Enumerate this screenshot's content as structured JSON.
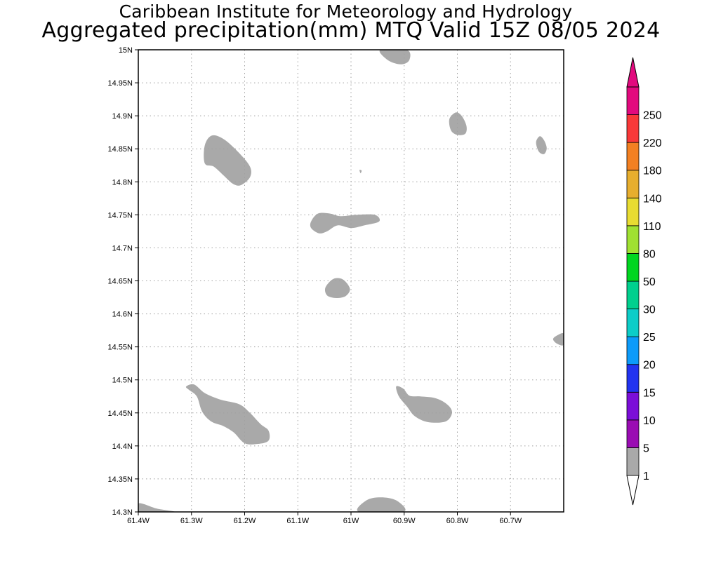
{
  "header": {
    "line1": "Caribbean Institute for Meteorology and Hydrology",
    "line2": "Aggregated precipitation(mm) MTQ Valid 15Z 08/05 2024"
  },
  "map": {
    "lon_range": [
      -61.4,
      -60.6
    ],
    "lat_range": [
      14.3,
      15.0
    ],
    "lon_ticks": [
      {
        "v": -61.4,
        "label": "61.4W"
      },
      {
        "v": -61.3,
        "label": "61.3W"
      },
      {
        "v": -61.2,
        "label": "61.2W"
      },
      {
        "v": -61.1,
        "label": "61.1W"
      },
      {
        "v": -61.0,
        "label": "61W"
      },
      {
        "v": -60.9,
        "label": "60.9W"
      },
      {
        "v": -60.8,
        "label": "60.8W"
      },
      {
        "v": -60.7,
        "label": "60.7W"
      }
    ],
    "lat_ticks": [
      {
        "v": 15.0,
        "label": "15N"
      },
      {
        "v": 14.95,
        "label": "14.95N"
      },
      {
        "v": 14.9,
        "label": "14.9N"
      },
      {
        "v": 14.85,
        "label": "14.85N"
      },
      {
        "v": 14.8,
        "label": "14.8N"
      },
      {
        "v": 14.75,
        "label": "14.75N"
      },
      {
        "v": 14.7,
        "label": "14.7N"
      },
      {
        "v": 14.65,
        "label": "14.65N"
      },
      {
        "v": 14.6,
        "label": "14.6N"
      },
      {
        "v": 14.55,
        "label": "14.55N"
      },
      {
        "v": 14.5,
        "label": "14.5N"
      },
      {
        "v": 14.45,
        "label": "14.45N"
      },
      {
        "v": 14.4,
        "label": "14.4N"
      },
      {
        "v": 14.35,
        "label": "14.35N"
      },
      {
        "v": 14.3,
        "label": "14.3N"
      }
    ],
    "grid": "dotted",
    "precip_color": "#a9a9a9",
    "regions": [
      {
        "name": "north-edge-cell",
        "pts": [
          [
            -60.945,
            15.0
          ],
          [
            -60.895,
            15.0
          ],
          [
            -60.89,
            14.985
          ],
          [
            -60.905,
            14.978
          ],
          [
            -60.93,
            14.984
          ]
        ]
      },
      {
        "name": "northeast-cell-a",
        "pts": [
          [
            -60.815,
            14.895
          ],
          [
            -60.803,
            14.905
          ],
          [
            -60.792,
            14.9
          ],
          [
            -60.783,
            14.885
          ],
          [
            -60.785,
            14.873
          ],
          [
            -60.8,
            14.871
          ],
          [
            -60.812,
            14.878
          ]
        ]
      },
      {
        "name": "northeast-cell-b",
        "pts": [
          [
            -60.652,
            14.86
          ],
          [
            -60.645,
            14.869
          ],
          [
            -60.637,
            14.863
          ],
          [
            -60.632,
            14.851
          ],
          [
            -60.637,
            14.842
          ],
          [
            -60.647,
            14.846
          ]
        ]
      },
      {
        "name": "northwest-cell",
        "pts": [
          [
            -61.275,
            14.855
          ],
          [
            -61.262,
            14.87
          ],
          [
            -61.24,
            14.865
          ],
          [
            -61.212,
            14.845
          ],
          [
            -61.19,
            14.823
          ],
          [
            -61.19,
            14.807
          ],
          [
            -61.207,
            14.795
          ],
          [
            -61.222,
            14.797
          ],
          [
            -61.24,
            14.81
          ],
          [
            -61.258,
            14.823
          ],
          [
            -61.275,
            14.828
          ]
        ]
      },
      {
        "name": "speck",
        "pts": [
          [
            -60.984,
            14.818
          ],
          [
            -60.98,
            14.817
          ],
          [
            -60.982,
            14.813
          ]
        ]
      },
      {
        "name": "central-elongated-cell",
        "pts": [
          [
            -61.075,
            14.74
          ],
          [
            -61.062,
            14.752
          ],
          [
            -61.04,
            14.752
          ],
          [
            -61.02,
            14.748
          ],
          [
            -60.99,
            14.75
          ],
          [
            -60.955,
            14.75
          ],
          [
            -60.947,
            14.74
          ],
          [
            -60.975,
            14.734
          ],
          [
            -61.0,
            14.73
          ],
          [
            -61.025,
            14.734
          ],
          [
            -61.045,
            14.725
          ],
          [
            -61.06,
            14.722
          ],
          [
            -61.075,
            14.73
          ]
        ]
      },
      {
        "name": "central-small-cell",
        "pts": [
          [
            -61.048,
            14.64
          ],
          [
            -61.033,
            14.653
          ],
          [
            -61.015,
            14.652
          ],
          [
            -61.002,
            14.638
          ],
          [
            -61.01,
            14.627
          ],
          [
            -61.028,
            14.624
          ],
          [
            -61.045,
            14.628
          ]
        ]
      },
      {
        "name": "east-edge-cell",
        "pts": [
          [
            -60.6,
            14.57
          ],
          [
            -60.611,
            14.568
          ],
          [
            -60.62,
            14.562
          ],
          [
            -60.613,
            14.555
          ],
          [
            -60.6,
            14.553
          ]
        ]
      },
      {
        "name": "southwest-band",
        "pts": [
          [
            -61.31,
            14.49
          ],
          [
            -61.295,
            14.493
          ],
          [
            -61.275,
            14.48
          ],
          [
            -61.245,
            14.47
          ],
          [
            -61.21,
            14.463
          ],
          [
            -61.19,
            14.45
          ],
          [
            -61.17,
            14.433
          ],
          [
            -61.155,
            14.423
          ],
          [
            -61.155,
            14.408
          ],
          [
            -61.175,
            14.403
          ],
          [
            -61.2,
            14.404
          ],
          [
            -61.22,
            14.42
          ],
          [
            -61.24,
            14.43
          ],
          [
            -61.263,
            14.437
          ],
          [
            -61.28,
            14.452
          ],
          [
            -61.29,
            14.475
          ],
          [
            -61.305,
            14.485
          ]
        ]
      },
      {
        "name": "southeast-band",
        "pts": [
          [
            -60.915,
            14.49
          ],
          [
            -60.902,
            14.487
          ],
          [
            -60.89,
            14.476
          ],
          [
            -60.87,
            14.475
          ],
          [
            -60.84,
            14.472
          ],
          [
            -60.818,
            14.462
          ],
          [
            -60.81,
            14.45
          ],
          [
            -60.822,
            14.437
          ],
          [
            -60.855,
            14.436
          ],
          [
            -60.88,
            14.445
          ],
          [
            -60.895,
            14.46
          ],
          [
            -60.91,
            14.475
          ]
        ]
      },
      {
        "name": "southwest-corner-cell",
        "pts": [
          [
            -61.4,
            14.312
          ],
          [
            -61.39,
            14.312
          ],
          [
            -61.365,
            14.305
          ],
          [
            -61.332,
            14.3
          ],
          [
            -61.4,
            14.3
          ]
        ]
      },
      {
        "name": "south-edge-cell",
        "pts": [
          [
            -60.985,
            14.3
          ],
          [
            -60.97,
            14.318
          ],
          [
            -60.94,
            14.322
          ],
          [
            -60.912,
            14.316
          ],
          [
            -60.902,
            14.3
          ]
        ]
      }
    ]
  },
  "colorbar": {
    "levels": [
      {
        "label": "1",
        "color": "#a9a9a9"
      },
      {
        "label": "5",
        "color": "#9a0cb3"
      },
      {
        "label": "10",
        "color": "#7b0ed8"
      },
      {
        "label": "15",
        "color": "#2233f0"
      },
      {
        "label": "20",
        "color": "#0c9bfa"
      },
      {
        "label": "25",
        "color": "#0ccdc8"
      },
      {
        "label": "30",
        "color": "#00d08e"
      },
      {
        "label": "50",
        "color": "#00d620"
      },
      {
        "label": "80",
        "color": "#a0e132"
      },
      {
        "label": "110",
        "color": "#e8dc32"
      },
      {
        "label": "140",
        "color": "#e7ae2e"
      },
      {
        "label": "180",
        "color": "#f38022"
      },
      {
        "label": "220",
        "color": "#f93838"
      },
      {
        "label": "250",
        "color": "#e20a7e"
      }
    ],
    "under_color": "#ffffff",
    "over_color": "#e20a7e"
  }
}
